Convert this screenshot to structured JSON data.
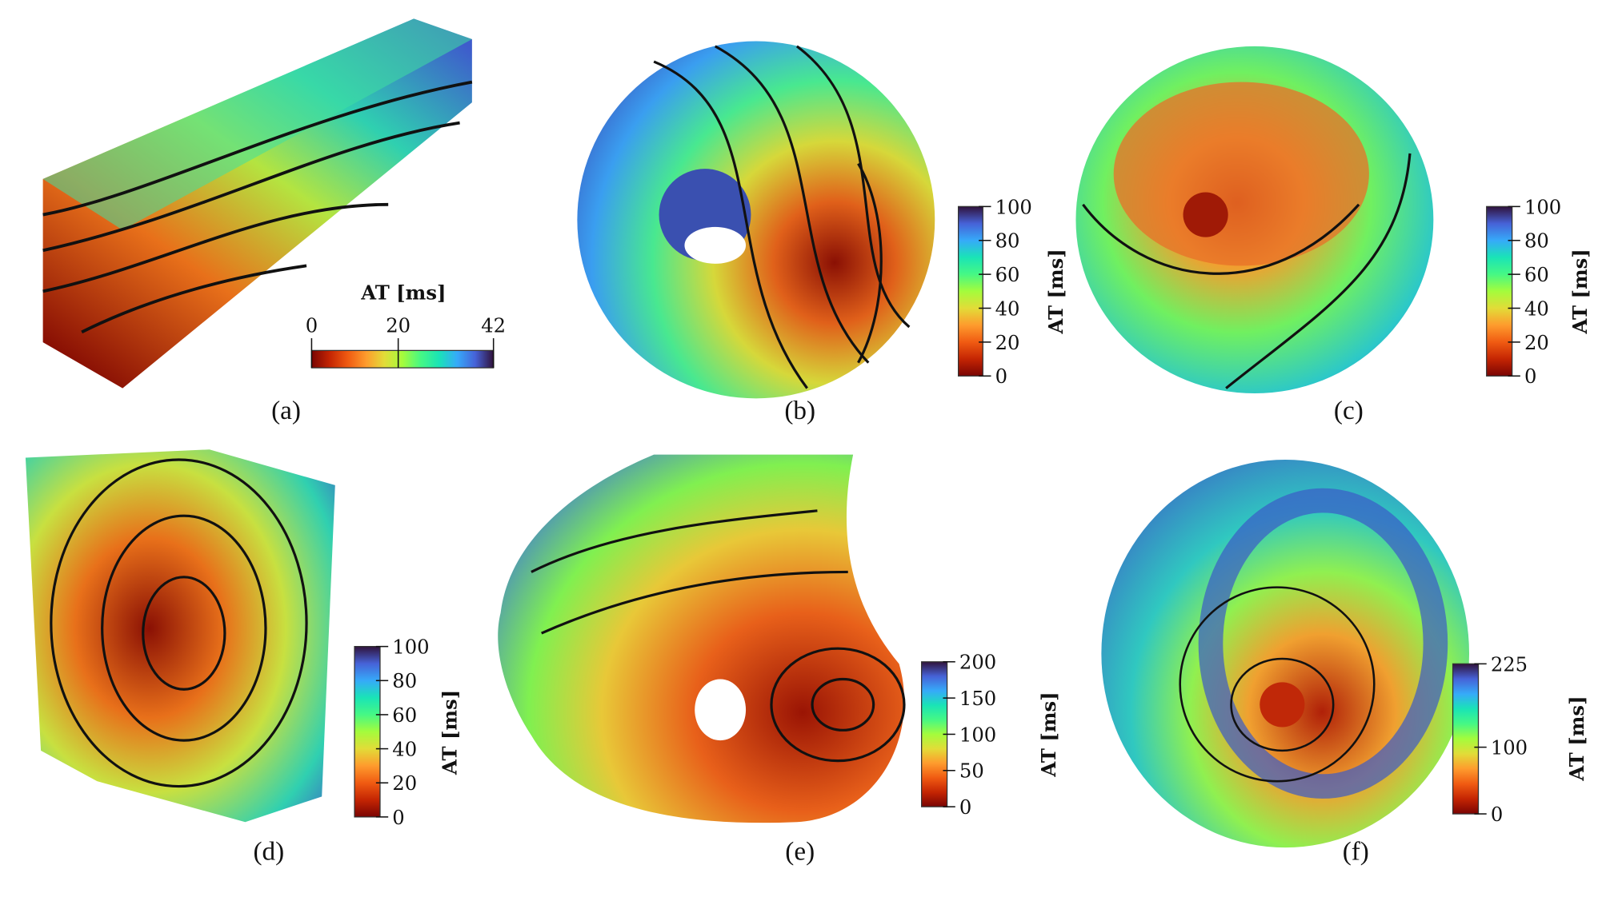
{
  "panels": [
    {
      "label": "(a)",
      "colorbar": {
        "title": "AT [ms]",
        "orientation": "horizontal",
        "lim": [
          0,
          42
        ],
        "ticks": [
          0,
          20,
          42
        ]
      }
    },
    {
      "label": "(b)",
      "colorbar": {
        "title": "AT [ms]",
        "orientation": "vertical",
        "lim": [
          0,
          100
        ],
        "ticks": [
          0,
          20,
          40,
          60,
          80,
          100
        ]
      }
    },
    {
      "label": "(c)",
      "colorbar": {
        "title": "AT [ms]",
        "orientation": "vertical",
        "lim": [
          0,
          100
        ],
        "ticks": [
          0,
          20,
          40,
          60,
          80,
          100
        ]
      }
    },
    {
      "label": "(d)",
      "colorbar": {
        "title": "AT [ms]",
        "orientation": "vertical",
        "lim": [
          0,
          100
        ],
        "ticks": [
          0,
          20,
          40,
          60,
          80,
          100
        ]
      }
    },
    {
      "label": "(e)",
      "colorbar": {
        "title": "AT [ms]",
        "orientation": "vertical",
        "lim": [
          0,
          200
        ],
        "ticks": [
          0,
          50,
          100,
          150,
          200
        ]
      }
    },
    {
      "label": "(f)",
      "colorbar": {
        "title": "AT [ms]",
        "orientation": "vertical",
        "lim": [
          0,
          225
        ],
        "ticks": [
          0,
          100,
          225
        ]
      }
    }
  ]
}
